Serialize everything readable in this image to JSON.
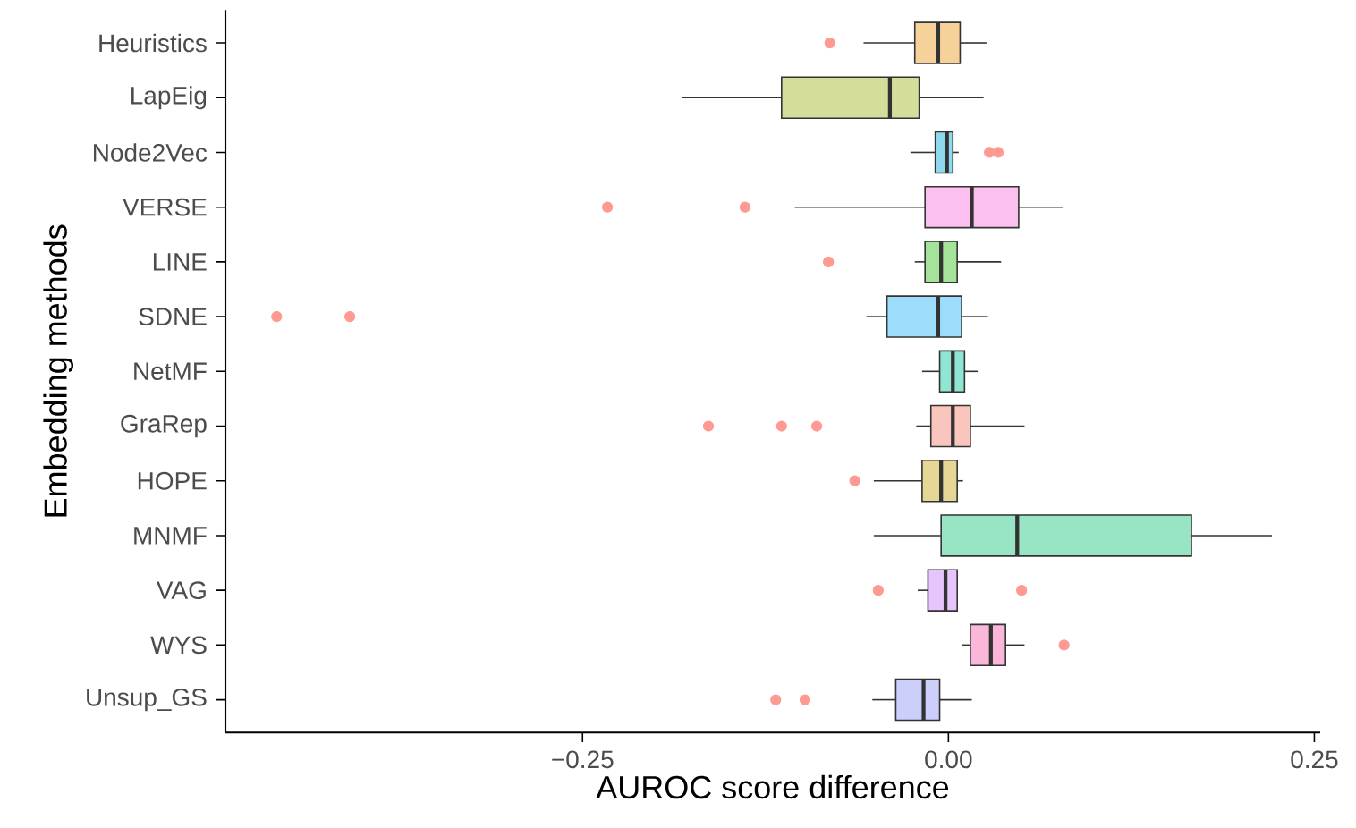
{
  "chart_data": {
    "type": "box",
    "orientation": "horizontal",
    "xlabel": "AUROC score difference",
    "ylabel": "Embedding methods",
    "categories": [
      "Heuristics",
      "LapEig",
      "Node2Vec",
      "VERSE",
      "LINE",
      "SDNE",
      "NetMF",
      "GraRep",
      "HOPE",
      "MNMF",
      "VAG",
      "WYS",
      "Unsup_GS"
    ],
    "colors": [
      "#f6d29a",
      "#d4dd9b",
      "#8fd9ee",
      "#fbbff0",
      "#a6e39a",
      "#9bddfb",
      "#8ee6d2",
      "#f9c5bd",
      "#e6d795",
      "#98e5c5",
      "#e5c5fb",
      "#fbb7d9",
      "#cbcffa"
    ],
    "boxes": [
      {
        "low": -0.058,
        "q1": -0.023,
        "median": -0.007,
        "q3": 0.008,
        "high": 0.026,
        "outliers": [
          -0.081
        ]
      },
      {
        "low": -0.182,
        "q1": -0.114,
        "median": -0.04,
        "q3": -0.02,
        "high": 0.024
      },
      {
        "low": -0.026,
        "q1": -0.009,
        "median": -0.001,
        "q3": 0.003,
        "high": 0.007,
        "outliers": [
          0.028,
          0.034
        ]
      },
      {
        "low": -0.105,
        "q1": -0.016,
        "median": 0.016,
        "q3": 0.048,
        "high": 0.078,
        "outliers": [
          -0.233,
          -0.139
        ]
      },
      {
        "low": -0.023,
        "q1": -0.016,
        "median": -0.005,
        "q3": 0.006,
        "high": 0.036,
        "outliers": [
          -0.082
        ]
      },
      {
        "low": -0.056,
        "q1": -0.042,
        "median": -0.007,
        "q3": 0.009,
        "high": 0.027,
        "outliers": [
          -0.459,
          -0.409
        ]
      },
      {
        "low": -0.018,
        "q1": -0.006,
        "median": 0.003,
        "q3": 0.011,
        "high": 0.02
      },
      {
        "low": -0.022,
        "q1": -0.012,
        "median": 0.003,
        "q3": 0.015,
        "high": 0.052,
        "outliers": [
          -0.164,
          -0.114,
          -0.09
        ]
      },
      {
        "low": -0.051,
        "q1": -0.018,
        "median": -0.005,
        "q3": 0.006,
        "high": 0.01,
        "outliers": [
          -0.064
        ]
      },
      {
        "low": -0.051,
        "q1": -0.005,
        "median": 0.047,
        "q3": 0.166,
        "high": 0.221
      },
      {
        "low": -0.021,
        "q1": -0.014,
        "median": -0.002,
        "q3": 0.006,
        "high": 0.006,
        "outliers": [
          -0.048,
          0.05
        ]
      },
      {
        "low": 0.009,
        "q1": 0.015,
        "median": 0.029,
        "q3": 0.039,
        "high": 0.052,
        "outliers": [
          0.079
        ]
      },
      {
        "low": -0.052,
        "q1": -0.036,
        "median": -0.017,
        "q3": -0.006,
        "high": 0.016,
        "outliers": [
          -0.118,
          -0.098
        ]
      }
    ],
    "xlim": [
      -0.494,
      0.254
    ],
    "xticks": [
      {
        "value": -0.25,
        "label": "−0.25"
      },
      {
        "value": 0,
        "label": "0.00"
      },
      {
        "value": 0.25,
        "label": "0.25"
      }
    ],
    "grid": false
  }
}
